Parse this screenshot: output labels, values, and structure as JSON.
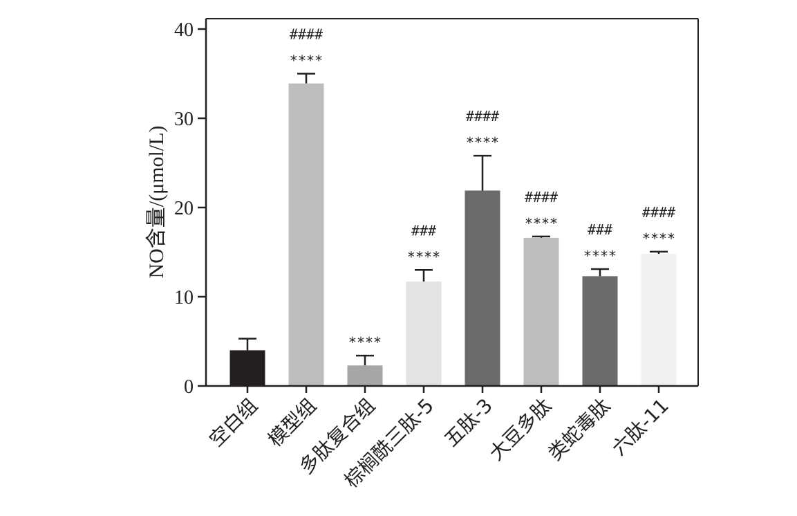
{
  "chart_data": {
    "type": "bar",
    "title": "",
    "xlabel": "",
    "ylabel": "NO含量/(μmol/L)",
    "ylim": [
      0,
      40
    ],
    "yticks": [
      0,
      10,
      20,
      30,
      40
    ],
    "grid": false,
    "categories": [
      "空白组",
      "模型组",
      "多肽复合组",
      "棕榈酰三肽-5",
      "五肽-3",
      "大豆多肽",
      "类蛇毒肽",
      "六肽-11"
    ],
    "values": [
      4.0,
      33.9,
      2.3,
      11.7,
      21.9,
      16.6,
      12.3,
      14.8
    ],
    "errors": [
      1.3,
      1.1,
      1.1,
      1.3,
      3.9,
      0.15,
      0.8,
      0.25
    ],
    "colors": [
      "#231f20",
      "#bcbdbd",
      "#a5a6a6",
      "#e3e3e3",
      "#6b6a6a",
      "#bcbdbd",
      "#6b6a6a",
      "#eff0ef"
    ],
    "annotations_star": [
      "",
      "****",
      "****",
      "****",
      "****",
      "****",
      "****",
      "****"
    ],
    "annotations_hash": [
      "",
      "####",
      "",
      "###",
      "####",
      "####",
      "###",
      "####"
    ]
  }
}
